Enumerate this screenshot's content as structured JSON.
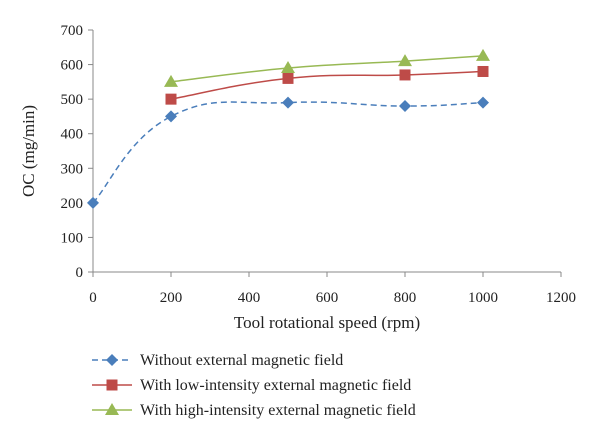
{
  "chart_data": {
    "type": "line",
    "title": "",
    "xlabel": "Tool rotational speed (rpm)",
    "ylabel": "OC (mg/min)",
    "xlim": [
      0,
      1200
    ],
    "ylim": [
      0,
      700
    ],
    "xticks": [
      0,
      200,
      400,
      600,
      800,
      1000,
      1200
    ],
    "yticks": [
      0,
      100,
      200,
      300,
      400,
      500,
      600,
      700
    ],
    "grid": false,
    "legend_position": "bottom",
    "series": [
      {
        "name": "Without external magnetic field",
        "color": "#4a7ebb",
        "marker": "diamond",
        "line_style": "dashed",
        "x": [
          0,
          200,
          500,
          800,
          1000
        ],
        "y": [
          200,
          450,
          490,
          480,
          490
        ]
      },
      {
        "name": "With low-intensity external magnetic field",
        "color": "#be4b48",
        "marker": "square",
        "line_style": "solid",
        "x": [
          200,
          500,
          800,
          1000
        ],
        "y": [
          500,
          560,
          570,
          580
        ]
      },
      {
        "name": "With high-intensity external magnetic field",
        "color": "#98b954",
        "marker": "triangle",
        "line_style": "solid",
        "x": [
          200,
          500,
          800,
          1000
        ],
        "y": [
          550,
          590,
          610,
          625
        ]
      }
    ]
  }
}
